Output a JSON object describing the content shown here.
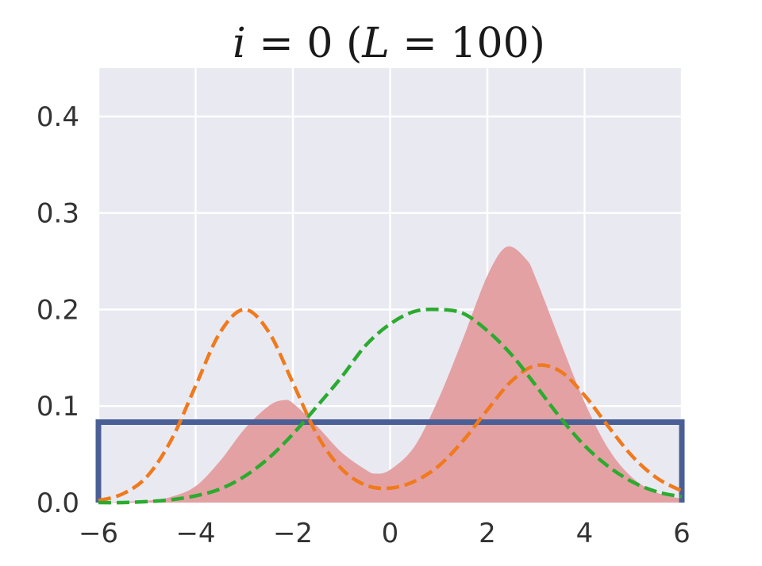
{
  "chart_data": {
    "type": "area",
    "title": {
      "full": "i = 0 (L = 100)",
      "parts": [
        {
          "text": "i",
          "italic": true
        },
        {
          "text": " = 0 (",
          "italic": false
        },
        {
          "text": "L",
          "italic": true
        },
        {
          "text": " = 100)",
          "italic": false
        }
      ]
    },
    "xlabel": "",
    "ylabel": "",
    "xlim": [
      -6,
      6
    ],
    "ylim": [
      0,
      0.45
    ],
    "xticks": [
      -6,
      -4,
      -2,
      0,
      2,
      4,
      6
    ],
    "xtick_labels": [
      "−6",
      "−4",
      "−2",
      "0",
      "2",
      "4",
      "6"
    ],
    "yticks": [
      0.0,
      0.1,
      0.2,
      0.3,
      0.4
    ],
    "ytick_labels": [
      "0.0",
      "0.1",
      "0.2",
      "0.3",
      "0.4"
    ],
    "grid": true,
    "legend": "none",
    "colors": {
      "background": "#e9e9f2",
      "grid": "#ffffff",
      "filled_density": "#e3a1a3",
      "uniform": "#4a5f96",
      "orange_dashed": "#f07a1c",
      "green_dashed": "#2bab2f"
    },
    "series": [
      {
        "kind": "filled",
        "color_key": "filled_density",
        "x": [
          -6,
          -5,
          -4.5,
          -4,
          -3.5,
          -3,
          -2.5,
          -2.2,
          -2,
          -1.5,
          -1,
          -0.5,
          -0.3,
          0,
          0.5,
          1,
          1.5,
          2,
          2.4,
          2.8,
          3,
          3.5,
          4,
          4.5,
          5,
          5.5,
          6
        ],
        "y": [
          0.0,
          0.002,
          0.006,
          0.017,
          0.043,
          0.076,
          0.1,
          0.106,
          0.103,
          0.079,
          0.052,
          0.034,
          0.03,
          0.034,
          0.058,
          0.108,
          0.17,
          0.235,
          0.265,
          0.252,
          0.232,
          0.167,
          0.104,
          0.055,
          0.025,
          0.01,
          0.004
        ]
      },
      {
        "kind": "step",
        "color_key": "uniform",
        "x": [
          -6,
          -6,
          6,
          6
        ],
        "y": [
          0,
          0.0833,
          0.0833,
          0
        ]
      },
      {
        "kind": "dashed",
        "color_key": "orange_dashed",
        "x": [
          -6,
          -5.5,
          -5,
          -4.5,
          -4,
          -3.5,
          -3,
          -2.5,
          -2,
          -1.5,
          -1,
          -0.5,
          0,
          0.5,
          1,
          1.5,
          2,
          2.5,
          3,
          3.5,
          4,
          4.5,
          5,
          5.5,
          6
        ],
        "y": [
          0.002,
          0.009,
          0.027,
          0.065,
          0.121,
          0.176,
          0.2,
          0.177,
          0.124,
          0.07,
          0.035,
          0.018,
          0.015,
          0.022,
          0.038,
          0.064,
          0.096,
          0.126,
          0.142,
          0.136,
          0.111,
          0.078,
          0.047,
          0.025,
          0.012
        ]
      },
      {
        "kind": "dashed",
        "color_key": "green_dashed",
        "x": [
          -6,
          -5.5,
          -5,
          -4.5,
          -4,
          -3.5,
          -3,
          -2.5,
          -2,
          -1.5,
          -1,
          -0.5,
          0,
          0.5,
          1,
          1.5,
          2,
          2.5,
          3,
          3.5,
          4,
          4.5,
          5,
          5.5,
          6
        ],
        "y": [
          0.0,
          0.0,
          0.001,
          0.003,
          0.007,
          0.014,
          0.027,
          0.046,
          0.071,
          0.1,
          0.13,
          0.163,
          0.185,
          0.198,
          0.2,
          0.196,
          0.178,
          0.153,
          0.121,
          0.088,
          0.059,
          0.037,
          0.021,
          0.011,
          0.006
        ]
      }
    ]
  }
}
